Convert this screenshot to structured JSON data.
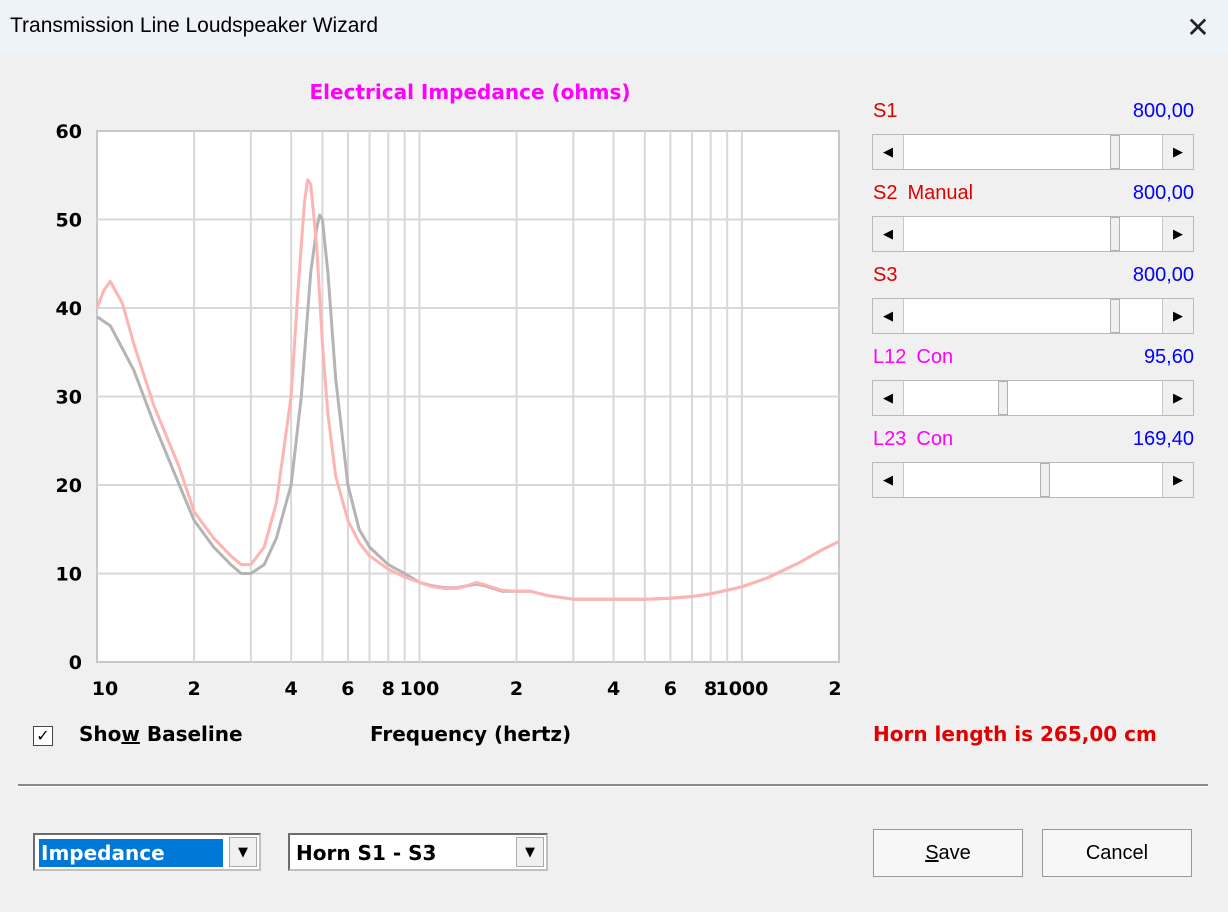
{
  "window": {
    "title": "Transmission Line Loudspeaker Wizard",
    "close_glyph": "✕"
  },
  "chart_data": {
    "type": "line",
    "title": "Electrical Impedance (ohms)",
    "xlabel": "Frequency (hertz)",
    "ylabel": "",
    "x_scale": "log",
    "xlim": [
      10,
      2000
    ],
    "ylim": [
      0,
      60
    ],
    "y_ticks": [
      "0",
      "10",
      "20",
      "30",
      "40",
      "50",
      "60"
    ],
    "x_ticks": [
      {
        "v": 10,
        "label": "10"
      },
      {
        "v": 20,
        "label": "2"
      },
      {
        "v": 40,
        "label": "4"
      },
      {
        "v": 60,
        "label": "6"
      },
      {
        "v": 80,
        "label": "8"
      },
      {
        "v": 100,
        "label": "100"
      },
      {
        "v": 200,
        "label": "2"
      },
      {
        "v": 400,
        "label": "4"
      },
      {
        "v": 600,
        "label": "6"
      },
      {
        "v": 800,
        "label": "8"
      },
      {
        "v": 1000,
        "label": "1000"
      },
      {
        "v": 2000,
        "label": "2"
      }
    ],
    "grid": true,
    "series": [
      {
        "role": "baseline",
        "color": "#b4b4b4",
        "x": [
          10,
          11,
          13,
          15,
          18,
          20,
          23,
          26,
          28,
          30,
          33,
          36,
          40,
          43,
          46,
          48,
          49,
          50,
          52,
          55,
          60,
          65,
          70,
          80,
          90,
          100,
          110,
          120,
          130,
          140,
          150,
          160,
          180,
          200,
          220,
          250,
          300,
          350,
          400,
          500,
          600,
          700,
          800,
          1000,
          1200,
          1500,
          1800,
          2000
        ],
        "y": [
          39,
          38,
          33,
          27,
          20,
          16,
          13,
          11,
          10,
          10,
          11,
          14,
          20,
          30,
          44,
          49,
          50.5,
          50,
          44,
          32,
          20,
          15,
          13,
          11,
          10,
          9,
          8.6,
          8.4,
          8.4,
          8.6,
          8.8,
          8.6,
          8,
          8,
          8,
          7.5,
          7.1,
          7.1,
          7.1,
          7.1,
          7.2,
          7.4,
          7.7,
          8.5,
          9.5,
          11.2,
          12.8,
          13.6
        ]
      },
      {
        "role": "current",
        "color": "#ffb4b4",
        "x": [
          10,
          10.5,
          11,
          12,
          13,
          15,
          18,
          20,
          23,
          26,
          28,
          30,
          33,
          36,
          40,
          42,
          44,
          45,
          46,
          48,
          50,
          52,
          55,
          60,
          65,
          70,
          80,
          90,
          100,
          110,
          120,
          130,
          140,
          150,
          160,
          180,
          200,
          220,
          250,
          300,
          350,
          400,
          500,
          600,
          700,
          800,
          1000,
          1200,
          1500,
          1800,
          2000
        ],
        "y": [
          40,
          42,
          43,
          40.5,
          36,
          29,
          22,
          17,
          14,
          12,
          11,
          11,
          13,
          18,
          30,
          42,
          52,
          54.5,
          54,
          47,
          36,
          28,
          21,
          16,
          13.5,
          12,
          10.5,
          9.6,
          9,
          8.5,
          8.3,
          8.3,
          8.6,
          9,
          8.7,
          8.1,
          8,
          8,
          7.5,
          7.1,
          7.1,
          7.1,
          7.1,
          7.2,
          7.4,
          7.7,
          8.5,
          9.5,
          11.2,
          12.8,
          13.6
        ]
      }
    ]
  },
  "params": [
    {
      "label": "S1",
      "mode": "",
      "value": "800,00",
      "label_color": "#e00000",
      "position": 0.83
    },
    {
      "label": "S2",
      "mode": "Manual",
      "value": "800,00",
      "label_color": "#e00000",
      "position": 0.83
    },
    {
      "label": "S3",
      "mode": "",
      "value": "800,00",
      "label_color": "#e00000",
      "position": 0.83
    },
    {
      "label": "L12",
      "mode": "Con",
      "value": "95,60",
      "label_color": "#ff00ff",
      "position": 0.38
    },
    {
      "label": "L23",
      "mode": "Con",
      "value": "169,40",
      "label_color": "#ff00ff",
      "position": 0.55
    }
  ],
  "show_baseline": {
    "pre": "Sho",
    "accel": "w",
    "post": " Baseline",
    "checked": true,
    "check_glyph": "✓"
  },
  "horn_length": "Horn length is 265,00 cm",
  "combo_mode": {
    "value": "Impedance",
    "arrow": "▼"
  },
  "combo_horn": {
    "value": "Horn S1 - S3",
    "arrow": "▼"
  },
  "save_button": {
    "accel": "S",
    "rest": "ave"
  },
  "cancel_button": "Cancel",
  "icons": {
    "scroll_left": "◀",
    "scroll_right": "▶"
  }
}
